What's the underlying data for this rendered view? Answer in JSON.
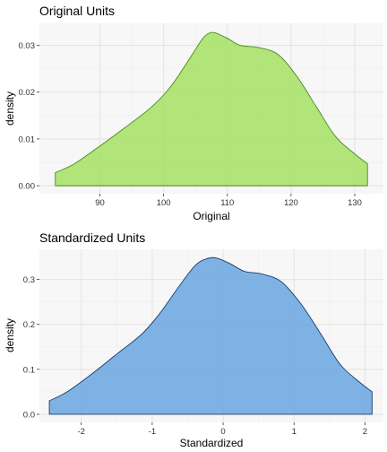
{
  "chart_data": [
    {
      "type": "area",
      "title": "Original Units",
      "xlabel": "Original",
      "ylabel": "density",
      "xlim": [
        80.5,
        134.5
      ],
      "ylim": [
        -0.0017,
        0.0347
      ],
      "xticks": [
        90,
        100,
        110,
        120,
        130
      ],
      "yticks": [
        0.0,
        0.01,
        0.02,
        0.03
      ],
      "ytick_labels": [
        "0.00",
        "0.01",
        "0.02",
        "0.03"
      ],
      "grid": true,
      "fill_color": "#a4e063",
      "line_color": "#4a8a1c",
      "x": [
        83,
        86,
        90,
        94,
        98,
        101,
        104,
        106,
        107,
        108,
        110,
        112,
        115,
        118,
        121,
        124,
        127,
        130,
        132
      ],
      "y": [
        0.0028,
        0.0047,
        0.0085,
        0.0125,
        0.0167,
        0.021,
        0.027,
        0.0312,
        0.0325,
        0.0327,
        0.0315,
        0.03,
        0.0295,
        0.028,
        0.0232,
        0.0168,
        0.0105,
        0.0068,
        0.0047
      ]
    },
    {
      "type": "area",
      "title": "Standardized Units",
      "xlabel": "Standardized",
      "ylabel": "density",
      "xlim": [
        -2.59,
        2.26
      ],
      "ylim": [
        -0.018,
        0.367
      ],
      "xticks": [
        -2,
        -1,
        0,
        1,
        2
      ],
      "yticks": [
        0.0,
        0.1,
        0.2,
        0.3
      ],
      "ytick_labels": [
        "0.0",
        "0.1",
        "0.2",
        "0.3"
      ],
      "grid": true,
      "fill_color": "#6aa6e0",
      "line_color": "#1c3d6b",
      "x": [
        -2.45,
        -2.2,
        -1.85,
        -1.5,
        -1.15,
        -0.9,
        -0.62,
        -0.4,
        -0.25,
        -0.1,
        0.1,
        0.3,
        0.55,
        0.82,
        1.1,
        1.38,
        1.65,
        1.92,
        2.1
      ],
      "y": [
        0.03,
        0.05,
        0.09,
        0.134,
        0.178,
        0.223,
        0.285,
        0.33,
        0.345,
        0.348,
        0.335,
        0.318,
        0.312,
        0.295,
        0.245,
        0.178,
        0.111,
        0.072,
        0.05
      ]
    }
  ]
}
